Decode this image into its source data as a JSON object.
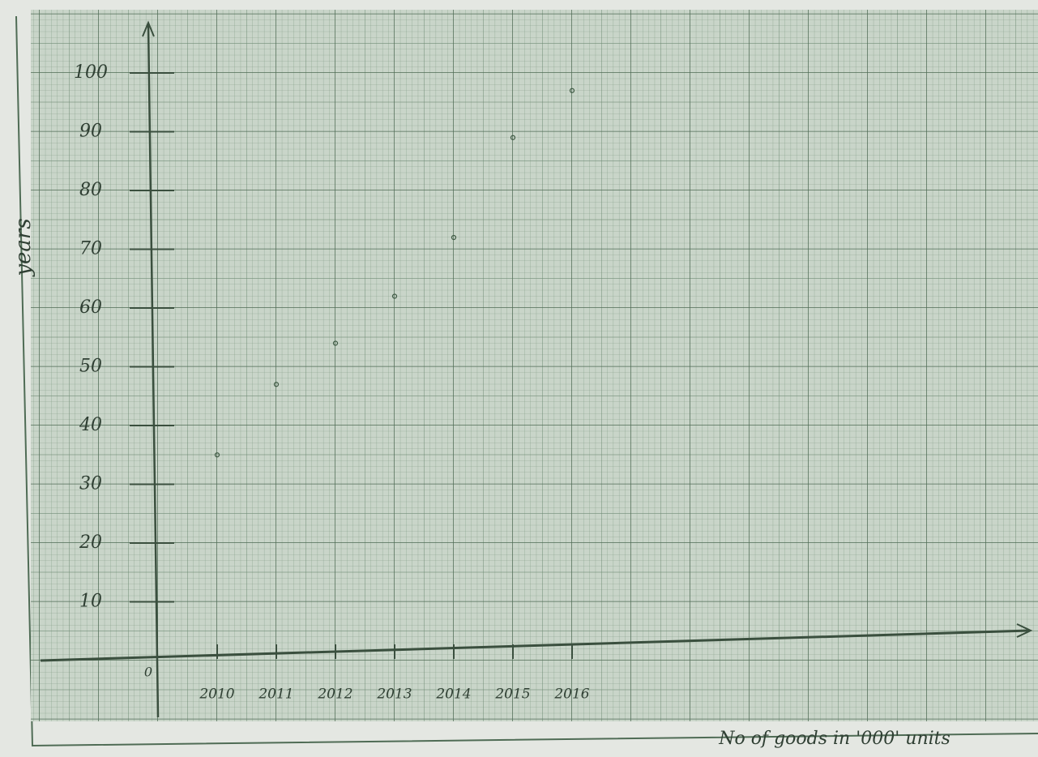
{
  "chart_data": {
    "type": "scatter",
    "y_label": "years",
    "x_label": "No of goods in '000' units",
    "origin_label": "0",
    "categories": [
      "2010",
      "2011",
      "2012",
      "2013",
      "2014",
      "2015",
      "2016"
    ],
    "values": [
      35,
      47,
      54,
      62,
      72,
      89,
      97
    ],
    "color": "#3f5a44",
    "ylim": [
      0,
      108
    ],
    "yticks": [
      10,
      20,
      30,
      40,
      50,
      60,
      70,
      80,
      90,
      100
    ],
    "grid": true
  }
}
